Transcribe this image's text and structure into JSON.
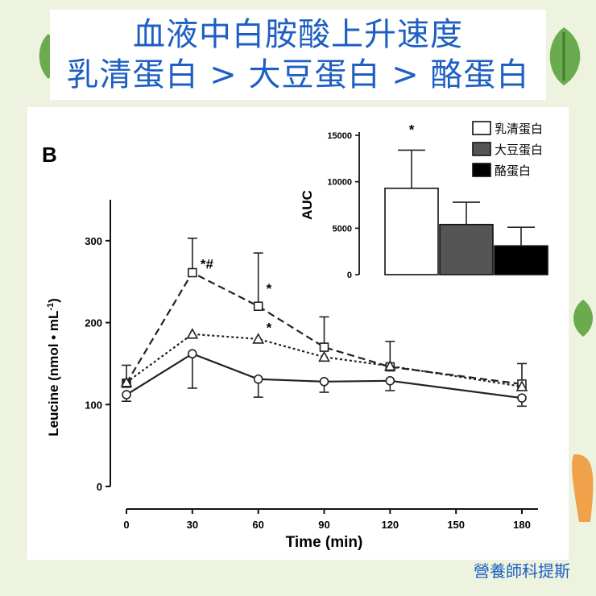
{
  "title": {
    "line1": "血液中白胺酸上升速度",
    "line2": "乳清蛋白 > 大豆蛋白 > 酪蛋白"
  },
  "credit": "營養師科提斯",
  "colors": {
    "title_text": "#1d5fc2",
    "background": "#eef3df",
    "decor_green": "#6aab4f",
    "decor_orange": "#f0a24a"
  },
  "chart_data": [
    {
      "type": "line",
      "panel_label": "B",
      "xlabel": "Time (min)",
      "ylabel": "Leucine (nmol • mL",
      "ylabel_sup": "-1",
      "ylabel_close": ")",
      "x": [
        0,
        30,
        60,
        90,
        120,
        180
      ],
      "xticks": [
        0,
        30,
        60,
        90,
        120,
        150,
        180
      ],
      "yticks": [
        0,
        100,
        200,
        300
      ],
      "xlim": [
        0,
        180
      ],
      "ylim": [
        0,
        350
      ],
      "grid": false,
      "series": [
        {
          "name": "乳清蛋白",
          "style": "dashed",
          "marker": "square",
          "values": [
            126,
            261,
            220,
            170,
            146,
            125
          ],
          "err_up": [
            22,
            42,
            65,
            37,
            31,
            25
          ],
          "err_down": [
            0,
            0,
            0,
            0,
            0,
            0
          ]
        },
        {
          "name": "大豆蛋白",
          "style": "dotted",
          "marker": "triangle",
          "values": [
            127,
            186,
            180,
            158,
            147,
            122
          ],
          "err_up": [
            0,
            0,
            0,
            0,
            0,
            0
          ],
          "err_down": [
            0,
            0,
            0,
            0,
            0,
            0
          ]
        },
        {
          "name": "酪蛋白",
          "style": "solid",
          "marker": "circle",
          "values": [
            112,
            162,
            131,
            128,
            129,
            108
          ],
          "err_up": [
            0,
            0,
            0,
            0,
            0,
            0
          ],
          "err_down": [
            8,
            42,
            22,
            13,
            12,
            10
          ]
        }
      ],
      "annotations": [
        {
          "x": 30,
          "y": 270,
          "text": "*#"
        },
        {
          "x": 60,
          "y": 240,
          "text": "*"
        },
        {
          "x": 60,
          "y": 192,
          "text": "*"
        }
      ]
    },
    {
      "type": "bar",
      "ylabel": "AUC",
      "categories": [
        "乳清蛋白",
        "大豆蛋白",
        "酪蛋白"
      ],
      "values": [
        9300,
        5400,
        3100
      ],
      "err_up": [
        4100,
        2400,
        2000
      ],
      "yticks": [
        0,
        5000,
        10000,
        15000
      ],
      "ylim": [
        0,
        15000
      ],
      "bar_colors": [
        "#ffffff",
        "#555555",
        "#000000"
      ],
      "annotations": [
        {
          "category": "乳清蛋白",
          "text": "*"
        }
      ],
      "legend": {
        "placement": "top-right",
        "entries": [
          {
            "label": "乳清蛋白",
            "color": "#ffffff"
          },
          {
            "label": "大豆蛋白",
            "color": "#555555"
          },
          {
            "label": "酪蛋白",
            "color": "#000000"
          }
        ]
      }
    }
  ]
}
